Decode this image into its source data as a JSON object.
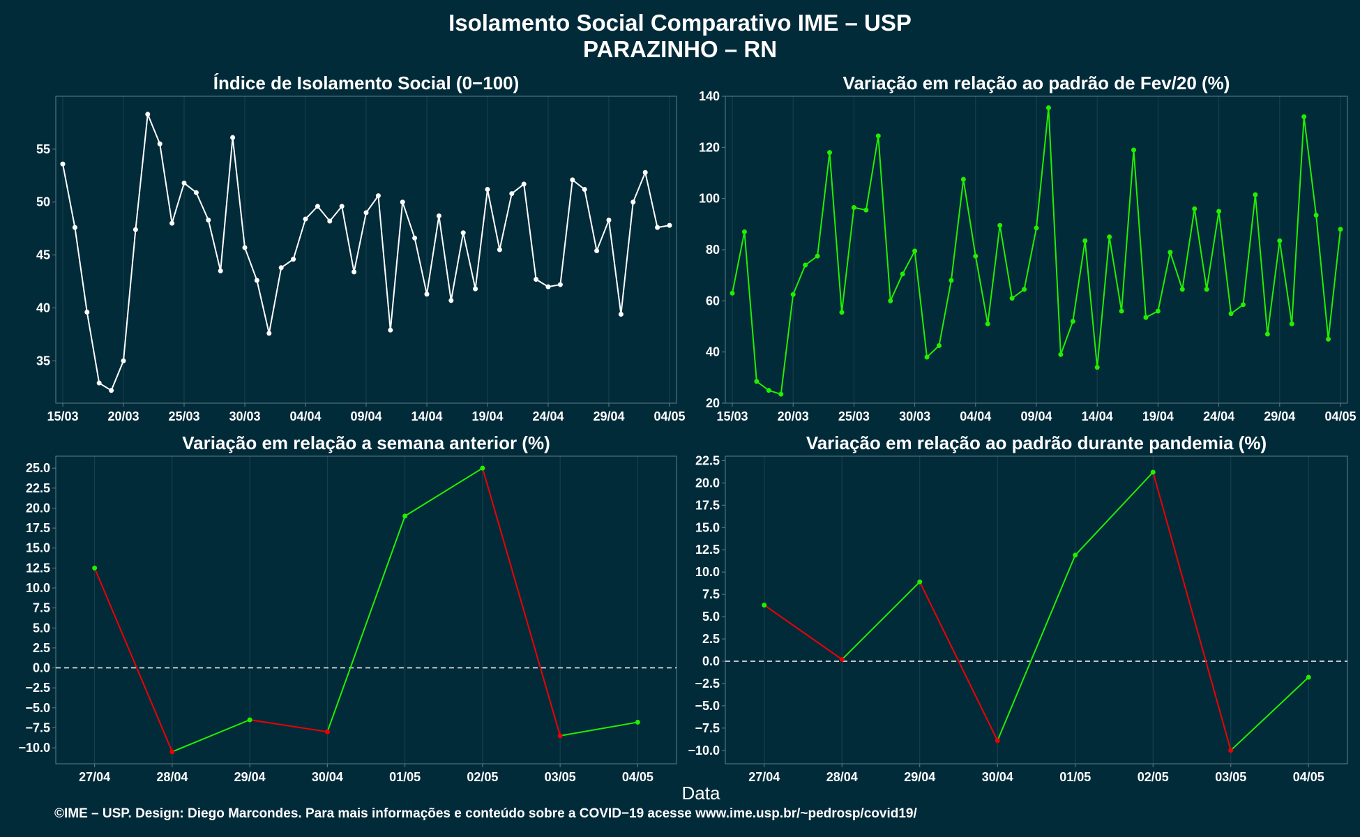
{
  "header": {
    "title": "Isolamento Social Comparativo IME – USP",
    "subtitle": "PARAZINHO – RN"
  },
  "x_axis_label": "Data",
  "footer": "©IME – USP. Design: Diego Marcondes. Para mais informações e conteúdo sobre a COVID−19 acesse www.ime.usp.br/~pedrosp/covid19/",
  "colors": {
    "background": "#022b3a",
    "panel_border": "#5f7f88",
    "grid": "#1b4250",
    "white_series": "#ffffff",
    "green_series": "#22ee00",
    "red_series": "#ee0000"
  },
  "chart_data": [
    {
      "id": "indice",
      "type": "line",
      "title": "Índice de Isolamento Social (0−100)",
      "color": "white",
      "x_start": "15/03",
      "x_tick_labels": [
        "15/03",
        "20/03",
        "25/03",
        "30/03",
        "04/04",
        "09/04",
        "14/04",
        "19/04",
        "24/04",
        "29/04",
        "04/05"
      ],
      "x_tick_index": [
        0,
        5,
        10,
        15,
        20,
        25,
        30,
        35,
        40,
        45,
        50
      ],
      "ylim": [
        31,
        60
      ],
      "y_ticks": [
        35,
        40,
        45,
        50,
        55
      ],
      "values": [
        53.6,
        47.6,
        39.6,
        32.9,
        32.2,
        35.0,
        47.4,
        58.3,
        55.5,
        48.0,
        51.8,
        50.9,
        48.3,
        43.5,
        56.1,
        45.7,
        42.6,
        37.6,
        43.8,
        44.6,
        48.4,
        49.6,
        48.2,
        49.6,
        43.4,
        49.0,
        50.6,
        37.9,
        50.0,
        46.6,
        41.3,
        48.7,
        40.7,
        47.1,
        41.8,
        51.2,
        45.5,
        50.8,
        51.7,
        42.7,
        42.0,
        42.2,
        52.1,
        51.2,
        45.4,
        48.3,
        39.4,
        50.0,
        52.8,
        47.6,
        47.8
      ]
    },
    {
      "id": "fev20",
      "type": "line",
      "title": "Variação em relação ao padrão de Fev/20 (%)",
      "color": "green",
      "x_start": "15/03",
      "x_tick_labels": [
        "15/03",
        "20/03",
        "25/03",
        "30/03",
        "04/04",
        "09/04",
        "14/04",
        "19/04",
        "24/04",
        "29/04",
        "04/05"
      ],
      "x_tick_index": [
        0,
        5,
        10,
        15,
        20,
        25,
        30,
        35,
        40,
        45,
        50
      ],
      "ylim": [
        20,
        140
      ],
      "y_ticks": [
        20,
        40,
        60,
        80,
        100,
        120,
        140
      ],
      "values": [
        63,
        87,
        28.5,
        25,
        23.5,
        62.5,
        74,
        77.5,
        118,
        55.5,
        96.5,
        95.5,
        124.5,
        60,
        70.5,
        79.5,
        38,
        42.5,
        68,
        107.5,
        77.5,
        51,
        89.5,
        61,
        64.5,
        88.5,
        135.5,
        39,
        52,
        83.5,
        34,
        85,
        56,
        119,
        53.5,
        56,
        79,
        64.5,
        96,
        64.5,
        95,
        55,
        58.5,
        101.5,
        47,
        83.5,
        51,
        132,
        93.5,
        45,
        88
      ]
    },
    {
      "id": "semana",
      "type": "line",
      "title": "Variação em relação a semana anterior (%)",
      "color": "green-up-red-down",
      "categories": [
        "27/04",
        "28/04",
        "29/04",
        "30/04",
        "01/05",
        "02/05",
        "03/05",
        "04/05"
      ],
      "values": [
        12.5,
        -10.5,
        -6.5,
        -8.0,
        19.0,
        25.0,
        -8.5,
        -6.8
      ],
      "ylim": [
        -12,
        26.5
      ],
      "y_ticks": [
        -10,
        -7.5,
        -5,
        -2.5,
        0,
        2.5,
        5,
        7.5,
        10,
        12.5,
        15,
        17.5,
        20,
        22.5,
        25
      ],
      "y_tick_labels": [
        "−10.0",
        "−7.5",
        "−5.0",
        "−2.5",
        "0.0",
        "2.5",
        "5.0",
        "7.5",
        "10.0",
        "12.5",
        "15.0",
        "17.5",
        "20.0",
        "22.5",
        "25.0"
      ],
      "reference_line": 0
    },
    {
      "id": "pandemia",
      "type": "line",
      "title": "Variação em relação ao padrão durante pandemia (%)",
      "color": "green-up-red-down",
      "categories": [
        "27/04",
        "28/04",
        "29/04",
        "30/04",
        "01/05",
        "02/05",
        "03/05",
        "04/05"
      ],
      "values": [
        6.3,
        0.2,
        8.9,
        -8.9,
        11.9,
        21.2,
        -10.0,
        -1.8
      ],
      "ylim": [
        -11.5,
        23
      ],
      "y_ticks": [
        -10,
        -7.5,
        -5,
        -2.5,
        0,
        2.5,
        5,
        7.5,
        10,
        12.5,
        15,
        17.5,
        20,
        22.5
      ],
      "y_tick_labels": [
        "−10.0",
        "−7.5",
        "−5.0",
        "−2.5",
        "0.0",
        "2.5",
        "5.0",
        "7.5",
        "10.0",
        "12.5",
        "15.0",
        "17.5",
        "20.0",
        "22.5"
      ],
      "reference_line": 0
    }
  ]
}
